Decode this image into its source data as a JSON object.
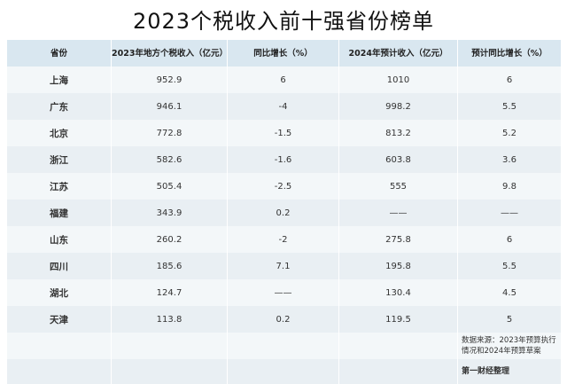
{
  "title": "2023个税收入前十强省份榜单",
  "headers": [
    "省份",
    "2023年地方个税收入（亿元）",
    "同比增长（%）",
    "2024年预计收入（亿元）",
    "预计同比增长（%）"
  ],
  "rows": [
    [
      "上海",
      "952.9",
      "6",
      "1010",
      "6"
    ],
    [
      "广东",
      "946.1",
      "-4",
      "998.2",
      "5.5"
    ],
    [
      "北京",
      "772.8",
      "-1.5",
      "813.2",
      "5.2"
    ],
    [
      "浙江",
      "582.6",
      "-1.6",
      "603.8",
      "3.6"
    ],
    [
      "江苏",
      "505.4",
      "-2.5",
      "555",
      "9.8"
    ],
    [
      "福建",
      "343.9",
      "0.2",
      "——",
      "——"
    ],
    [
      "山东",
      "260.2",
      "-2",
      "275.8",
      "6"
    ],
    [
      "四川",
      "185.6",
      "7.1",
      "195.8",
      "5.5"
    ],
    [
      "湖北",
      "124.7",
      "——",
      "130.4",
      "4.5"
    ],
    [
      "天津",
      "113.8",
      "0.2",
      "119.5",
      "5"
    ]
  ],
  "source_note": "数据来源：2023年预算执行情况和2024年预算草案",
  "credit": "第一财经整理"
}
